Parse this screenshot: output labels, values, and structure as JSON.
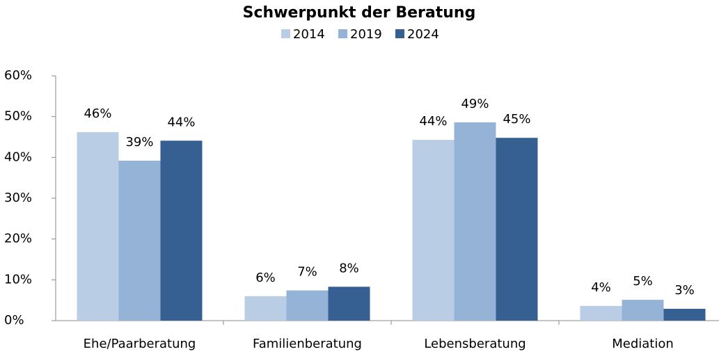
{
  "chart_data": {
    "type": "bar",
    "title": "Schwerpunkt der Beratung",
    "categories": [
      "Ehe/Paarberatung",
      "Familienberatung",
      "Lebensberatung",
      "Mediation"
    ],
    "series": [
      {
        "name": "2014",
        "color": "#b9cde5",
        "values": [
          46.2,
          6.0,
          44.3,
          3.6
        ],
        "value_labels": [
          "46%",
          "6%",
          "44%",
          "4%"
        ]
      },
      {
        "name": "2019",
        "color": "#95b3d7",
        "values": [
          39.2,
          7.4,
          48.6,
          5.1
        ],
        "value_labels": [
          "39%",
          "7%",
          "49%",
          "5%"
        ]
      },
      {
        "name": "2024",
        "color": "#376092",
        "values": [
          44.1,
          8.3,
          44.8,
          2.9
        ],
        "value_labels": [
          "44%",
          "8%",
          "45%",
          "3%"
        ]
      }
    ],
    "ylim": [
      0,
      60
    ],
    "yticks": [
      {
        "value": 0,
        "label": "0%"
      },
      {
        "value": 10,
        "label": "10%"
      },
      {
        "value": 20,
        "label": "20%"
      },
      {
        "value": 30,
        "label": "30%"
      },
      {
        "value": 40,
        "label": "40%"
      },
      {
        "value": 50,
        "label": "50%"
      },
      {
        "value": 60,
        "label": "60%"
      }
    ],
    "legend": "top",
    "grid": false
  }
}
